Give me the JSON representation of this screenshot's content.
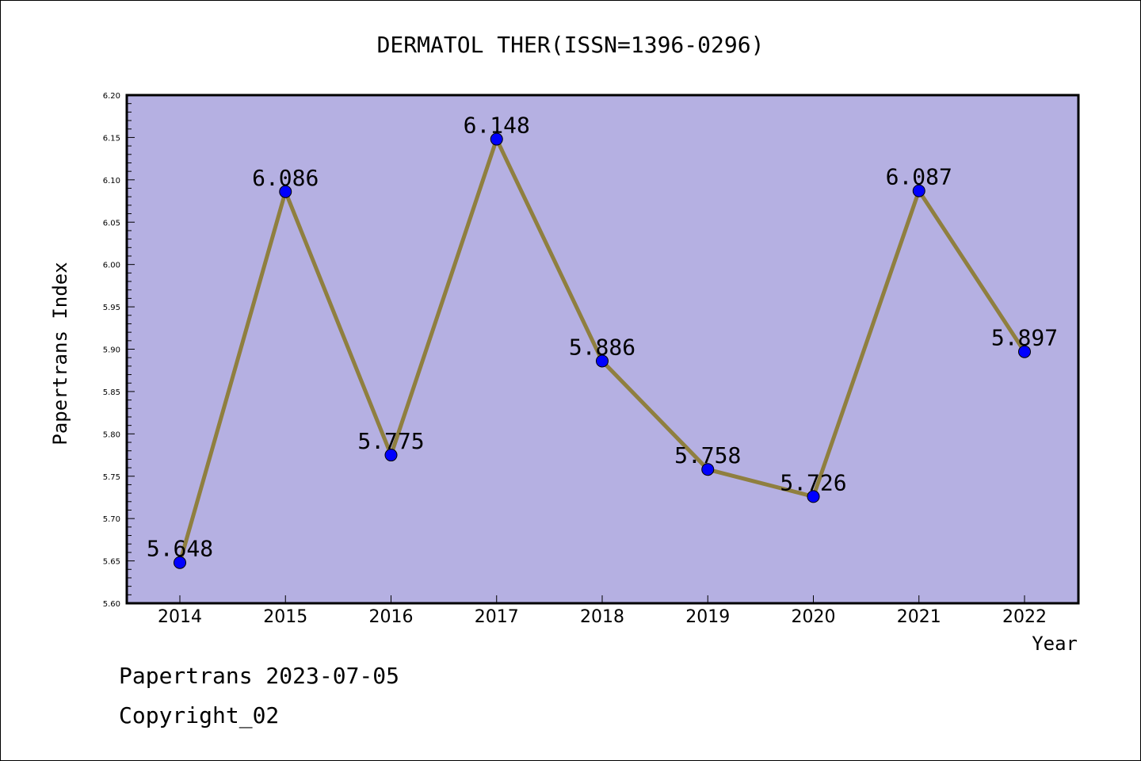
{
  "chart_data": {
    "type": "line",
    "title": "DERMATOL THER(ISSN=1396-0296)",
    "xlabel": "Year",
    "ylabel": "Papertrans Index",
    "categories": [
      "2014",
      "2015",
      "2016",
      "2017",
      "2018",
      "2019",
      "2020",
      "2021",
      "2022"
    ],
    "values": [
      5.648,
      6.086,
      5.775,
      6.148,
      5.886,
      5.758,
      5.726,
      6.087,
      5.897
    ],
    "data_labels": [
      "5.648",
      "6.086",
      "5.775",
      "6.148",
      "5.886",
      "5.758",
      "5.726",
      "6.087",
      "5.897"
    ],
    "ylim": [
      5.6,
      6.2
    ],
    "yticks": [
      "5.60",
      "5.65",
      "5.70",
      "5.75",
      "5.80",
      "5.85",
      "5.90",
      "5.95",
      "6.00",
      "6.05",
      "6.10",
      "6.15",
      "6.20"
    ],
    "grid": false,
    "legend": "none",
    "colors": {
      "plot_background": "#b5b0e2",
      "line": "#8f7f3f",
      "marker": "#0000ff"
    }
  },
  "footer": {
    "line1": "Papertrans 2023-07-05",
    "line2": "Copyright_02"
  }
}
